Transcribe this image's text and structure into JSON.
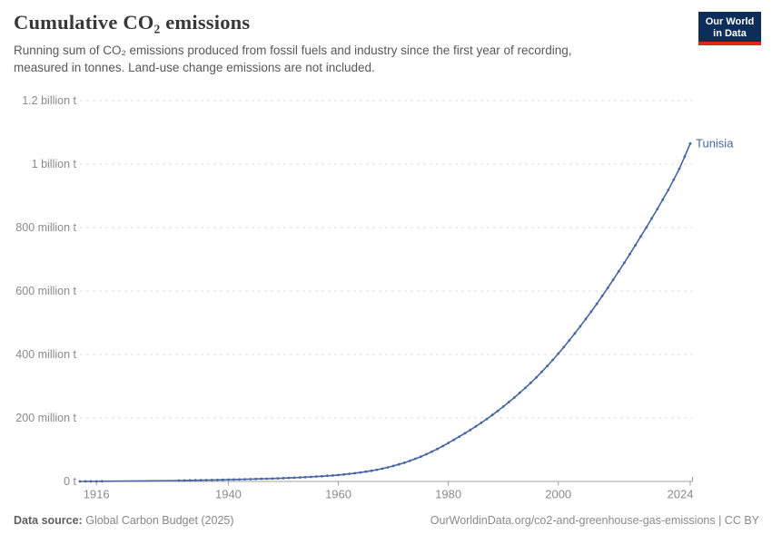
{
  "header": {
    "title": "Cumulative CO₂ emissions",
    "subtitle_lines": [
      "Running sum of CO₂ emissions produced from fossil fuels and industry since the first year of recording,",
      "measured in tonnes. Land-use change emissions are not included."
    ]
  },
  "logo": {
    "line1": "Our World",
    "line2": "in Data",
    "bg_color": "#0d2e5a",
    "accent_color": "#e0261c"
  },
  "footer": {
    "datasource_label": "Data source:",
    "datasource_value": "Global Carbon Budget (2025)",
    "link_text": "OurWorldinData.org/co2-and-greenhouse-gas-emissions | CC BY"
  },
  "chart_data": {
    "type": "line",
    "title": "Cumulative CO₂ emissions",
    "entity_label": "Tunisia",
    "unit": "tonnes",
    "line_color": "#4766a0",
    "grid_color": "#dcdcdc",
    "axis_color": "#a0a0a0",
    "tick_text_color": "#8b8b8b",
    "grid_on": true,
    "xlim": [
      1913,
      2024
    ],
    "ylim_million_t": [
      0,
      1200
    ],
    "x_ticks": [
      1916,
      1940,
      1960,
      1980,
      2000,
      2024
    ],
    "y_ticks": [
      {
        "value_million_t": 0,
        "label": "0 t"
      },
      {
        "value_million_t": 200,
        "label": "200 million t"
      },
      {
        "value_million_t": 400,
        "label": "400 million t"
      },
      {
        "value_million_t": 600,
        "label": "600 million t"
      },
      {
        "value_million_t": 800,
        "label": "800 million t"
      },
      {
        "value_million_t": 1000,
        "label": "1 billion t"
      },
      {
        "value_million_t": 1200,
        "label": "1.2 billion t"
      }
    ],
    "series": [
      {
        "name": "Tunisia",
        "points_year_million_t": [
          [
            1913,
            0.1
          ],
          [
            1914,
            0.2
          ],
          [
            1915,
            0.3
          ],
          [
            1916,
            0.4
          ],
          [
            1917,
            0.5
          ],
          [
            1931,
            2.9
          ],
          [
            1932,
            3.1
          ],
          [
            1933,
            3.4
          ],
          [
            1934,
            3.7
          ],
          [
            1935,
            4.0
          ],
          [
            1936,
            4.3
          ],
          [
            1937,
            4.6
          ],
          [
            1938,
            4.9
          ],
          [
            1939,
            5.2
          ],
          [
            1940,
            5.6
          ],
          [
            1941,
            6.0
          ],
          [
            1942,
            6.4
          ],
          [
            1943,
            6.8
          ],
          [
            1944,
            7.2
          ],
          [
            1945,
            7.7
          ],
          [
            1946,
            8.2
          ],
          [
            1947,
            8.7
          ],
          [
            1948,
            9.2
          ],
          [
            1949,
            9.8
          ],
          [
            1950,
            10.4
          ],
          [
            1951,
            11.1
          ],
          [
            1952,
            11.8
          ],
          [
            1953,
            12.6
          ],
          [
            1954,
            13.4
          ],
          [
            1955,
            14.3
          ],
          [
            1956,
            15.3
          ],
          [
            1957,
            16.4
          ],
          [
            1958,
            17.6
          ],
          [
            1959,
            18.9
          ],
          [
            1960,
            20.3
          ],
          [
            1961,
            22.0
          ],
          [
            1962,
            23.9
          ],
          [
            1963,
            26.0
          ],
          [
            1964,
            28.3
          ],
          [
            1965,
            30.8
          ],
          [
            1966,
            33.6
          ],
          [
            1967,
            36.8
          ],
          [
            1968,
            40.4
          ],
          [
            1969,
            44.4
          ],
          [
            1970,
            48.8
          ],
          [
            1971,
            53.6
          ],
          [
            1972,
            58.9
          ],
          [
            1973,
            64.8
          ],
          [
            1974,
            71.3
          ],
          [
            1975,
            78.3
          ],
          [
            1976,
            85.8
          ],
          [
            1977,
            93.9
          ],
          [
            1978,
            102.4
          ],
          [
            1979,
            111.5
          ],
          [
            1980,
            121.1
          ],
          [
            1981,
            131.0
          ],
          [
            1982,
            141.2
          ],
          [
            1983,
            151.7
          ],
          [
            1984,
            162.4
          ],
          [
            1985,
            173.4
          ],
          [
            1986,
            184.9
          ],
          [
            1987,
            196.9
          ],
          [
            1988,
            209.4
          ],
          [
            1989,
            222.4
          ],
          [
            1990,
            235.9
          ],
          [
            1991,
            249.9
          ],
          [
            1992,
            264.4
          ],
          [
            1993,
            279.4
          ],
          [
            1994,
            294.9
          ],
          [
            1995,
            310.9
          ],
          [
            1996,
            327.7
          ],
          [
            1997,
            345.3
          ],
          [
            1998,
            363.7
          ],
          [
            1999,
            382.9
          ],
          [
            2000,
            402.9
          ],
          [
            2001,
            423.5
          ],
          [
            2002,
            444.7
          ],
          [
            2003,
            466.5
          ],
          [
            2004,
            488.9
          ],
          [
            2005,
            511.9
          ],
          [
            2006,
            535.5
          ],
          [
            2007,
            559.7
          ],
          [
            2008,
            584.5
          ],
          [
            2009,
            609.9
          ],
          [
            2010,
            635.9
          ],
          [
            2011,
            662.3
          ],
          [
            2012,
            689.1
          ],
          [
            2013,
            716.3
          ],
          [
            2014,
            743.9
          ],
          [
            2015,
            771.9
          ],
          [
            2016,
            800.3
          ],
          [
            2017,
            829.1
          ],
          [
            2018,
            858.3
          ],
          [
            2019,
            888.0
          ],
          [
            2020,
            918.5
          ],
          [
            2021,
            951.0
          ],
          [
            2022,
            985.0
          ],
          [
            2023,
            1024.0
          ],
          [
            2024,
            1065.0
          ]
        ]
      }
    ]
  }
}
